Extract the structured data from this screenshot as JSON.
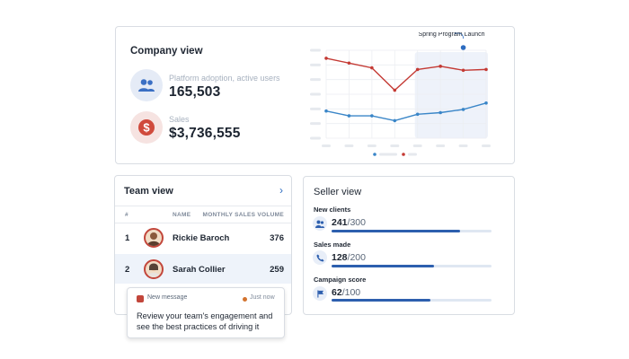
{
  "company": {
    "title": "Company view",
    "kpis": [
      {
        "label": "Platform adoption, active users",
        "value": "165,503",
        "icon": "users-icon",
        "color": "#3a6fc4"
      },
      {
        "label": "Sales",
        "value": "$3,736,555",
        "icon": "dollar-icon",
        "color": "#d04a3c"
      }
    ]
  },
  "chart_data": {
    "type": "line",
    "title": "",
    "annotation": "Spring Program Launch",
    "categories": [
      "1",
      "2",
      "3",
      "4",
      "5",
      "6",
      "7",
      "8"
    ],
    "series": [
      {
        "name": "red",
        "color": "#c43a34",
        "values": [
          100,
          94,
          88,
          60,
          86,
          90,
          85,
          86
        ]
      },
      {
        "name": "blue",
        "color": "#3a86c8",
        "values": [
          34,
          28,
          28,
          22,
          30,
          32,
          36,
          44
        ]
      }
    ],
    "ylim": [
      0,
      110
    ],
    "highlight_from_index": 4,
    "annotation_index": 6,
    "grid": true
  },
  "team": {
    "title": "Team view",
    "columns": {
      "num": "#",
      "name": "NAME",
      "volume": "MONTHLY SALES VOLUME"
    },
    "rows": [
      {
        "num": "1",
        "name": "Rickie Baroch",
        "volume": "376"
      },
      {
        "num": "2",
        "name": "Sarah Collier",
        "volume": "259"
      }
    ]
  },
  "notification": {
    "label": "New message",
    "time": "Just now",
    "body": "Review your team's engagement and see the best practices of driving it"
  },
  "seller": {
    "title": "Seller view",
    "metrics": [
      {
        "label": "New clients",
        "value": "241",
        "total": "/300",
        "progress": 0.8033,
        "icon": "clients-icon"
      },
      {
        "label": "Sales made",
        "value": "128",
        "total": "/200",
        "progress": 0.64,
        "icon": "phone-icon"
      },
      {
        "label": "Campaign score",
        "value": "62",
        "total": "/100",
        "progress": 0.62,
        "icon": "flag-icon"
      }
    ]
  }
}
